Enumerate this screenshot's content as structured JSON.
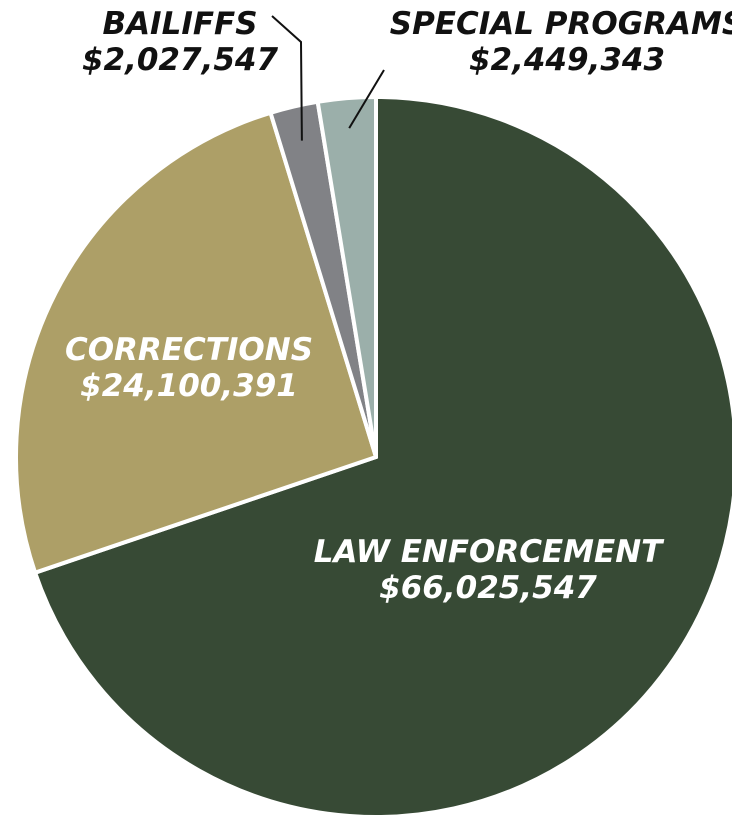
{
  "chart_data": {
    "type": "pie",
    "title": "",
    "start_angle_deg": 0,
    "direction": "clockwise",
    "slices": [
      {
        "label": "LAW ENFORCEMENT",
        "value_text": "$66,025,547",
        "value": 66025547,
        "color": "#374a35"
      },
      {
        "label": "CORRECTIONS",
        "value_text": "$24,100,391",
        "value": 24100391,
        "color": "#ad9f67"
      },
      {
        "label": "BAILIFFS",
        "value_text": "$2,027,547",
        "value": 2027547,
        "color": "#818286"
      },
      {
        "label": "SPECIAL PROGRAMS",
        "value_text": "$2,449,343",
        "value": 2449343,
        "color": "#9bafaa"
      }
    ],
    "separator_color": "#ffffff",
    "leader_line_color": "#111111"
  }
}
